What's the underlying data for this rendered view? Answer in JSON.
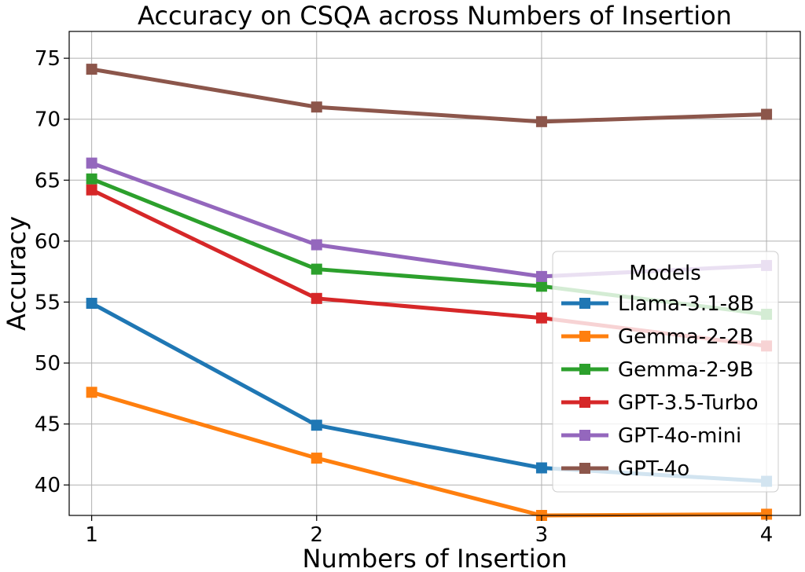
{
  "chart_data": {
    "type": "line",
    "title": "Accuracy on CSQA across Numbers of Insertion",
    "xlabel": "Numbers of Insertion",
    "ylabel": "Accuracy",
    "x": [
      1,
      2,
      3,
      4
    ],
    "xlim": [
      0.9,
      4.15
    ],
    "ylim": [
      37.5,
      77.2
    ],
    "yticks": [
      40,
      45,
      50,
      55,
      60,
      65,
      70,
      75
    ],
    "grid": true,
    "legend": {
      "title": "Models",
      "placement": "lower-right"
    },
    "series": [
      {
        "name": "Llama-3.1-8B",
        "color": "#1f77b4",
        "values": [
          54.9,
          44.9,
          41.4,
          40.3
        ]
      },
      {
        "name": "Gemma-2-2B",
        "color": "#ff7f0e",
        "values": [
          47.6,
          42.2,
          37.5,
          37.6
        ]
      },
      {
        "name": "Gemma-2-9B",
        "color": "#2ca02c",
        "values": [
          65.1,
          57.7,
          56.3,
          54.0
        ]
      },
      {
        "name": "GPT-3.5-Turbo",
        "color": "#d62728",
        "values": [
          64.2,
          55.3,
          53.7,
          51.4
        ]
      },
      {
        "name": "GPT-4o-mini",
        "color": "#9467bd",
        "values": [
          66.4,
          59.7,
          57.1,
          58.0
        ]
      },
      {
        "name": "GPT-4o",
        "color": "#8c564b",
        "values": [
          74.1,
          71.0,
          69.8,
          70.4
        ]
      }
    ]
  }
}
